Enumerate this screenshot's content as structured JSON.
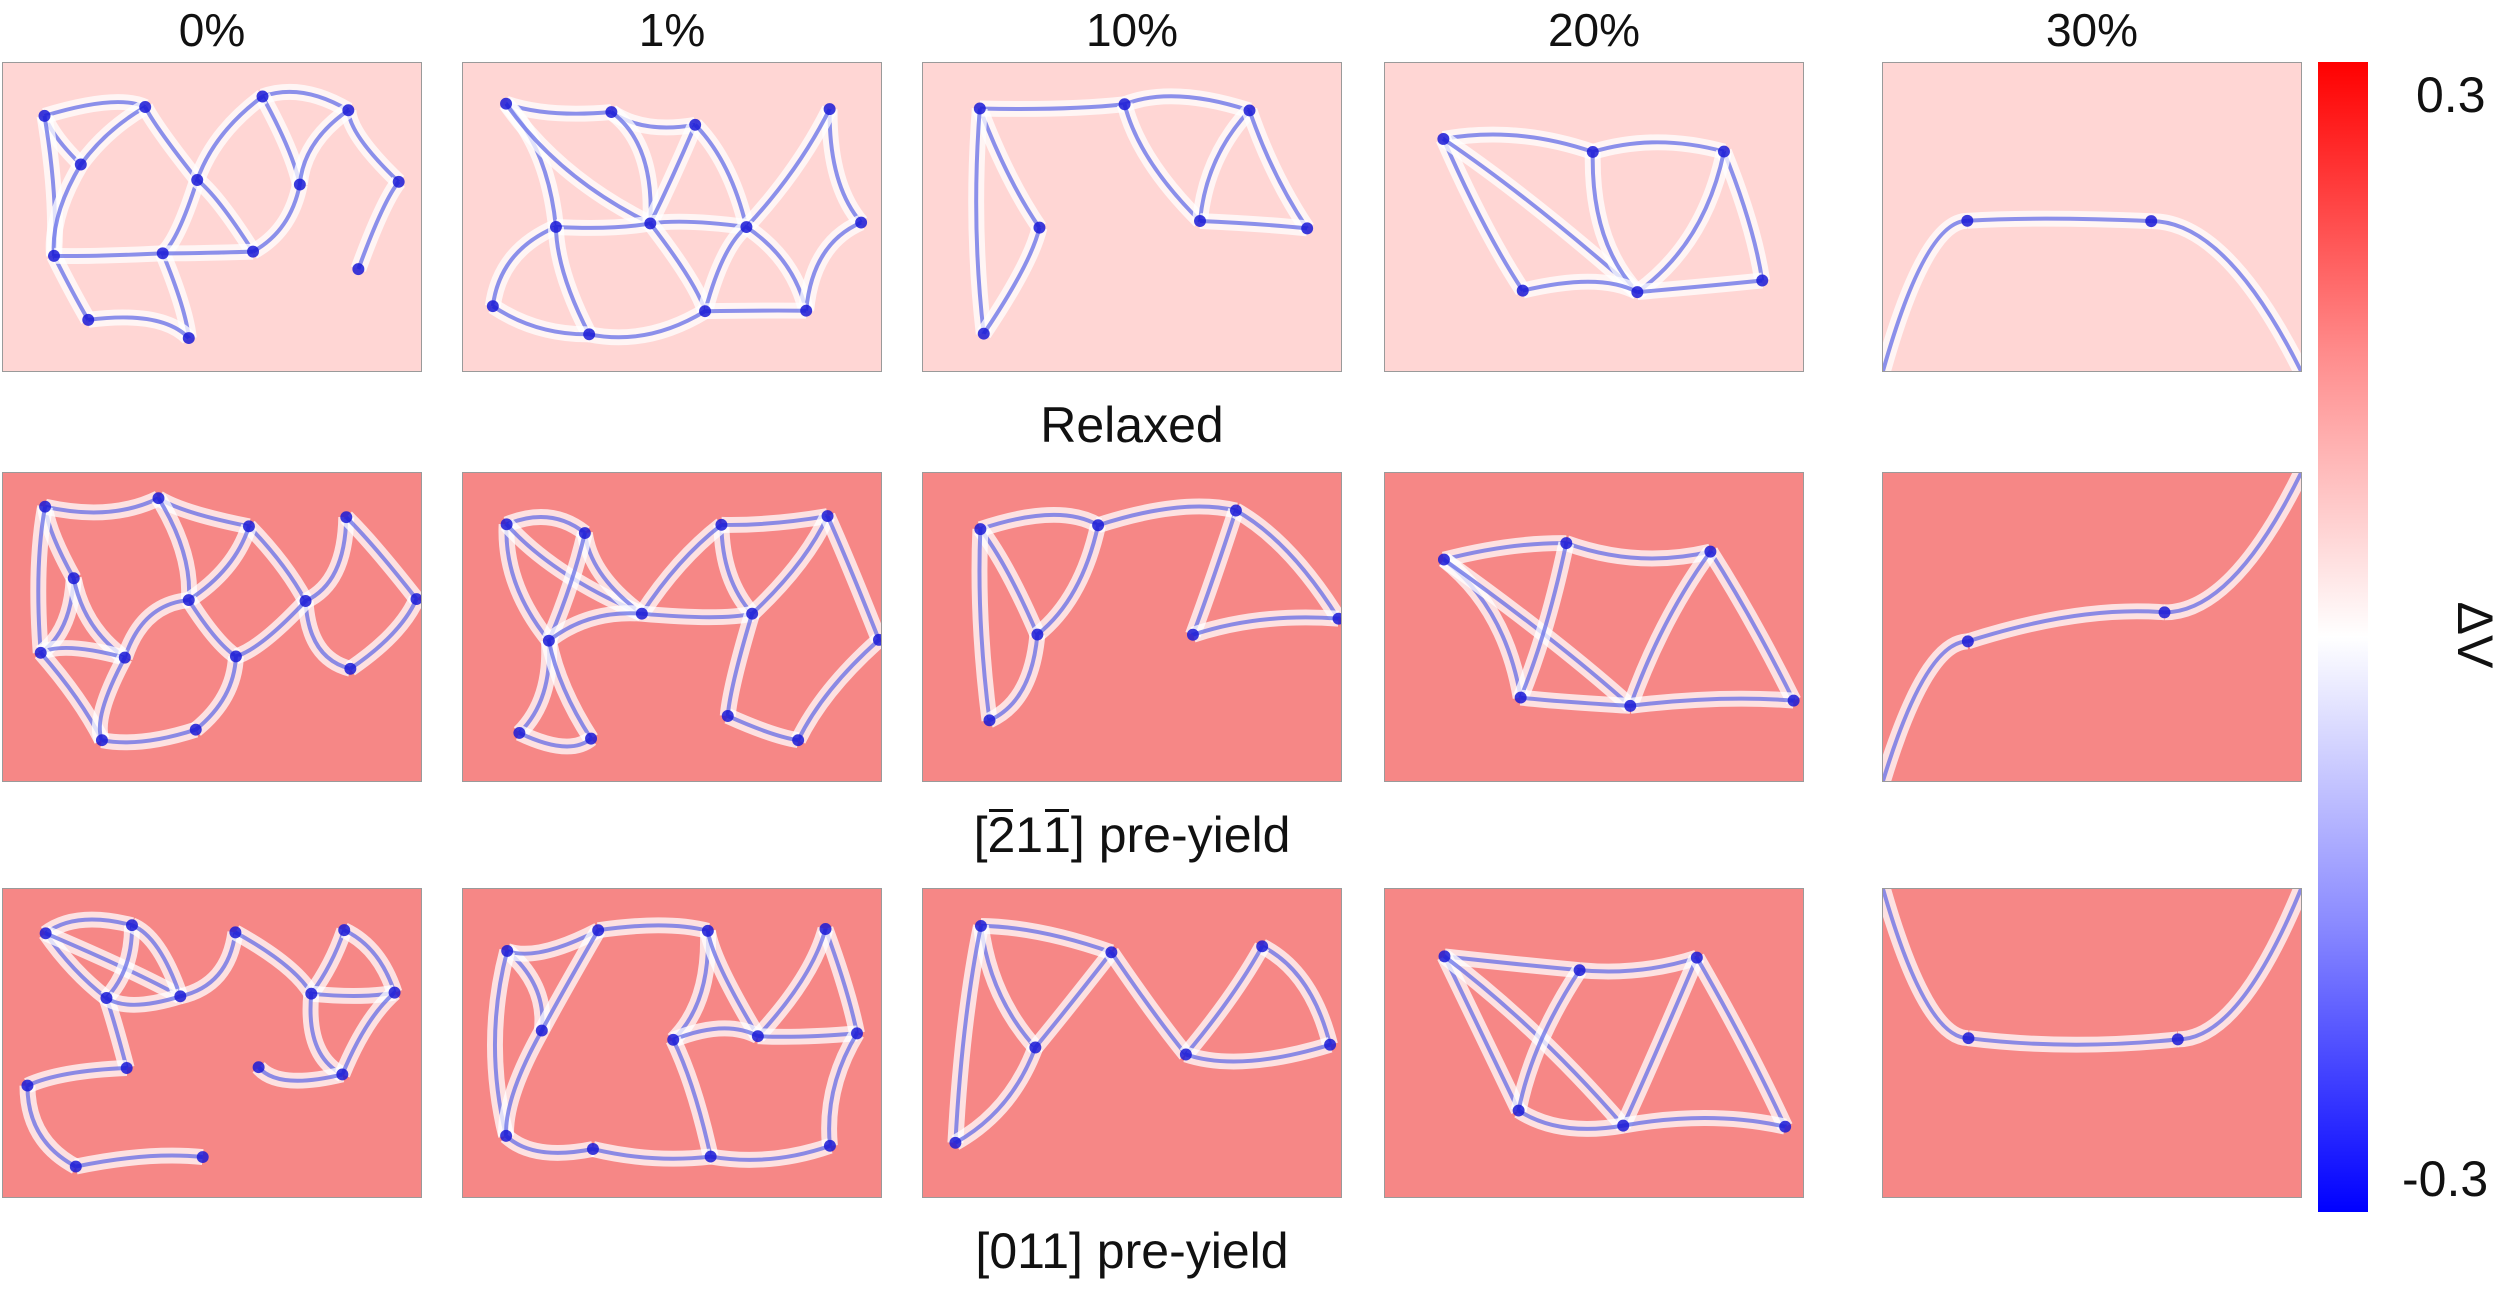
{
  "columns": [
    "0%",
    "1%",
    "10%",
    "20%",
    "30%"
  ],
  "rows": [
    {
      "label": "Relaxed",
      "background": "#ffd6d4"
    },
    {
      "label_prefix": "[",
      "label_bar1": "2",
      "label_mid": "1",
      "label_bar2": "1",
      "label_suffix": "] pre-yield",
      "background": "#f68786"
    },
    {
      "label_prefix": "[011] pre-yield",
      "background": "#f68786"
    }
  ],
  "colorbar": {
    "max_label": "0.3",
    "min_label": "-0.3",
    "title": "ΔV",
    "colors": {
      "max": "#ff0000",
      "mid": "#ffffff",
      "min": "#0000ff"
    }
  },
  "colors": {
    "line": "#5a64e6",
    "line_halo": "#ffffff",
    "node": "#1a1ad6"
  }
}
